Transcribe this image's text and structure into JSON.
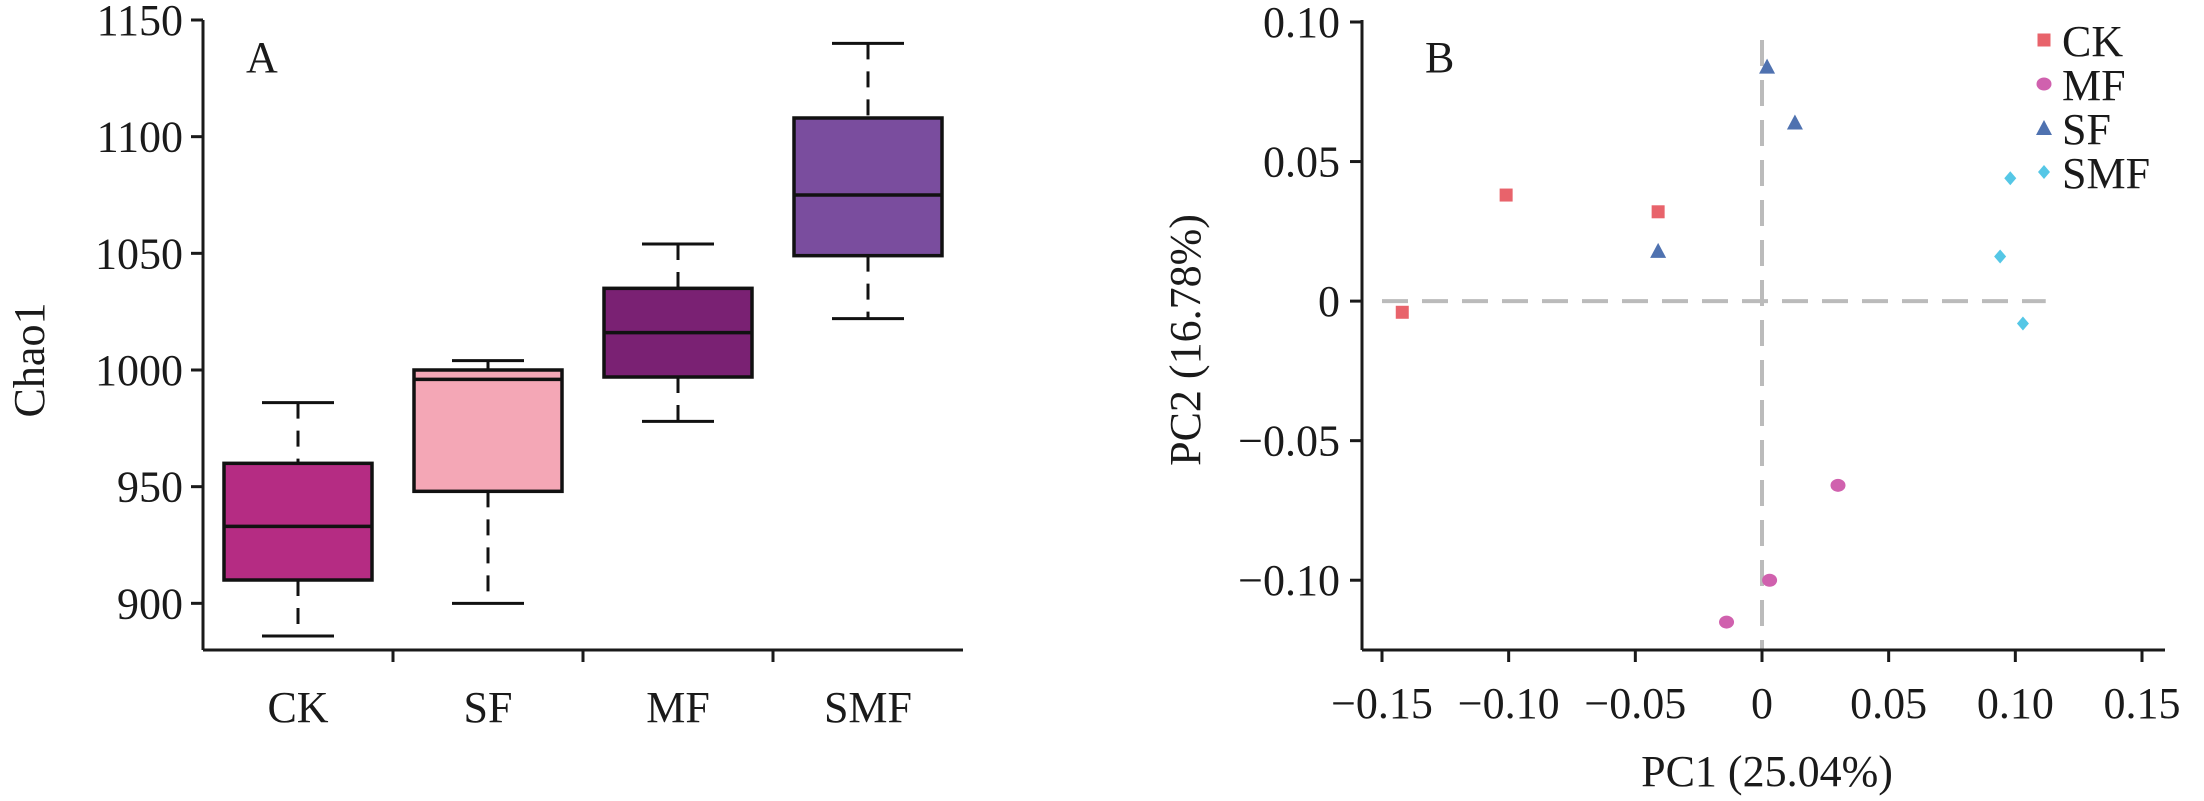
{
  "chart_data": [
    {
      "type": "box",
      "panel_label": "A",
      "title": "",
      "xlabel": "",
      "ylabel": "Chao1",
      "ylim": [
        880,
        1150
      ],
      "yticks": [
        900,
        950,
        1000,
        1050,
        1100,
        1150
      ],
      "categories": [
        "CK",
        "SF",
        "MF",
        "SMF"
      ],
      "boxes": [
        {
          "category": "CK",
          "min": 886,
          "q1": 910,
          "median": 933,
          "q3": 960,
          "max": 986,
          "color": "#b52c83"
        },
        {
          "category": "SF",
          "min": 900,
          "q1": 948,
          "median": 996,
          "q3": 1000,
          "max": 1004,
          "color": "#f4a7b6"
        },
        {
          "category": "MF",
          "min": 978,
          "q1": 997,
          "median": 1016,
          "q3": 1035,
          "max": 1054,
          "color": "#7a2173"
        },
        {
          "category": "SMF",
          "min": 1022,
          "q1": 1049,
          "median": 1075,
          "q3": 1108,
          "max": 1140,
          "color": "#7a4d9e"
        }
      ]
    },
    {
      "type": "scatter",
      "panel_label": "B",
      "title": "",
      "xlabel": "PC1 (25.04%)",
      "ylabel": "PC2 (16.78%)",
      "xlim": [
        -0.15,
        0.15
      ],
      "ylim": [
        -0.125,
        0.1
      ],
      "xticks": [
        -0.15,
        -0.1,
        -0.05,
        0,
        0.05,
        0.1,
        0.15
      ],
      "xtick_labels": [
        "−0.15",
        "−0.10",
        "−0.05",
        "0",
        "0.05",
        "0.10",
        "0.15"
      ],
      "yticks": [
        -0.1,
        -0.05,
        0,
        0.05,
        0.1
      ],
      "ytick_labels": [
        "−0.10",
        "−0.05",
        "0",
        "0.05",
        "0.10"
      ],
      "reference_lines": {
        "x": 0,
        "y": 0,
        "style": "dashed",
        "color": "#bbbbbb"
      },
      "legend_position": "top-right",
      "series": [
        {
          "name": "CK",
          "marker": "square",
          "color": "#e8636b",
          "points": [
            [
              -0.142,
              -0.004
            ],
            [
              -0.101,
              0.038
            ],
            [
              -0.041,
              0.032
            ]
          ]
        },
        {
          "name": "MF",
          "marker": "circle",
          "color": "#d061ae",
          "points": [
            [
              0.03,
              -0.066
            ],
            [
              0.003,
              -0.1
            ],
            [
              -0.014,
              -0.115
            ]
          ]
        },
        {
          "name": "SF",
          "marker": "triangle",
          "color": "#4f72b0",
          "points": [
            [
              0.002,
              0.084
            ],
            [
              0.013,
              0.064
            ],
            [
              -0.041,
              0.018
            ]
          ]
        },
        {
          "name": "SMF",
          "marker": "diamond",
          "color": "#55c7e6",
          "points": [
            [
              0.098,
              0.044
            ],
            [
              0.094,
              0.016
            ],
            [
              0.103,
              -0.008
            ]
          ]
        }
      ]
    }
  ]
}
